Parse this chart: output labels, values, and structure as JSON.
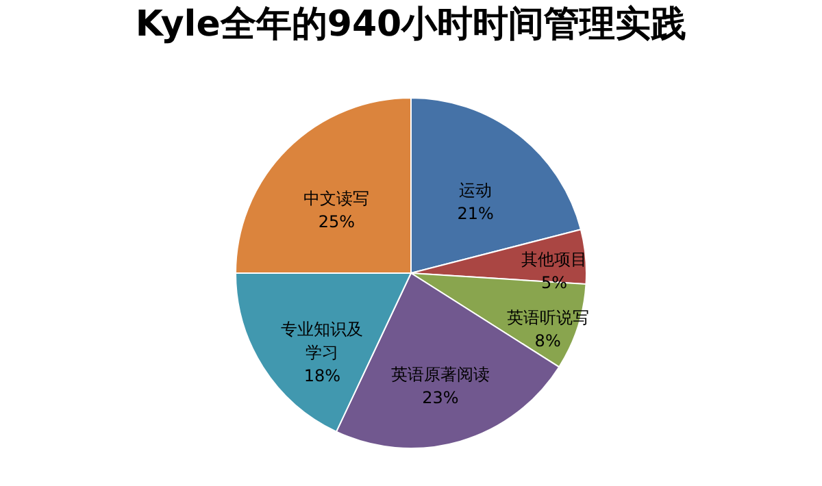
{
  "chart_data": {
    "type": "pie",
    "title": "Kyle全年的940小时时间管理实践",
    "categories": [
      "运动",
      "其他项目",
      "英语听说写",
      "英语原著阅读",
      "专业知识及学习",
      "中文读写"
    ],
    "values": [
      21,
      5,
      8,
      23,
      18,
      25
    ],
    "value_labels": [
      "21%",
      "5%",
      "8%",
      "23%",
      "18%",
      "25%"
    ],
    "colors": [
      "#4572a7",
      "#aa4643",
      "#89a54e",
      "#71588f",
      "#4198af",
      "#db843d"
    ],
    "legend": false
  }
}
